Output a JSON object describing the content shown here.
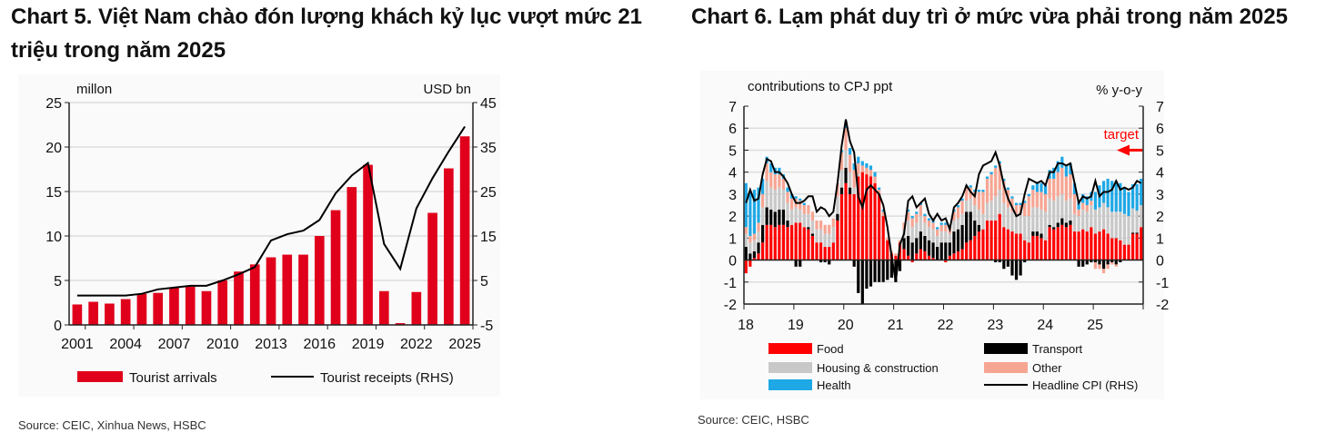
{
  "charts": [
    {
      "title": "Chart 5. Việt Nam chào đón lượng khách kỷ lục vượt mức 21 triệu trong năm 2025",
      "source": "Source: CEIC, Xinhua News, HSBC"
    },
    {
      "title": "Chart 6. Lạm phát duy trì ở mức vừa phải trong năm 2025",
      "source": "Source: CEIC, HSBC"
    }
  ],
  "chart_data": [
    {
      "type": "bar+line",
      "ylabel": "millon",
      "y2label": "USD bn",
      "ylim": [
        0,
        25
      ],
      "y2lim": [
        -5,
        45
      ],
      "yticks": [
        0,
        5,
        10,
        15,
        20,
        25
      ],
      "y2ticks": [
        -5,
        5,
        15,
        25,
        35,
        45
      ],
      "xticks": [
        "2001",
        "2004",
        "2007",
        "2010",
        "2013",
        "2016",
        "2019",
        "2022",
        "2025"
      ],
      "categories": [
        2001,
        2002,
        2003,
        2004,
        2005,
        2006,
        2007,
        2008,
        2009,
        2010,
        2011,
        2012,
        2013,
        2014,
        2015,
        2016,
        2017,
        2018,
        2019,
        2020,
        2021,
        2022,
        2023,
        2024,
        2025
      ],
      "series": [
        {
          "name": "Tourist arrivals",
          "type": "bar",
          "axis": "left",
          "color": "#e0001b",
          "values": [
            2.3,
            2.6,
            2.4,
            2.9,
            3.5,
            3.6,
            4.2,
            4.3,
            3.8,
            5.0,
            6.0,
            6.8,
            7.6,
            7.9,
            7.9,
            10.0,
            12.9,
            15.5,
            18.0,
            3.8,
            0.2,
            3.7,
            12.6,
            17.6,
            21.2
          ]
        },
        {
          "name": "Tourist receipts (RHS)",
          "type": "line",
          "axis": "right",
          "color": "#000000",
          "values": [
            1.6,
            1.6,
            1.6,
            1.6,
            2.0,
            3.0,
            3.4,
            3.8,
            3.8,
            5.0,
            6.4,
            8.0,
            14.0,
            15.4,
            16.2,
            18.6,
            24.6,
            28.6,
            31.4,
            13.2,
            7.6,
            21.2,
            28.0,
            34.0,
            39.6
          ]
        }
      ],
      "legend": "bottom",
      "grid": true
    },
    {
      "type": "stacked-bar+line",
      "ylabel": "contributions to CPJ ppt",
      "y2label": "% y-o-y",
      "ylim": [
        -2,
        7
      ],
      "y2lim": [
        -2,
        7
      ],
      "yticks": [
        -2,
        -1,
        0,
        1,
        2,
        3,
        4,
        5,
        6,
        7
      ],
      "xticks": [
        "18",
        "19",
        "20",
        "21",
        "22",
        "23",
        "24",
        "25"
      ],
      "annotation": {
        "text": "target",
        "value": 5,
        "color": "#ff0000"
      },
      "series": [
        {
          "name": "Food",
          "type": "bar",
          "color": "#ff0000",
          "values": [
            -0.6,
            -0.3,
            0.1,
            0.3,
            0.8,
            1.6,
            1.6,
            1.5,
            1.6,
            1.6,
            1.5,
            1.6,
            1.7,
            1.7,
            1.5,
            1.4,
            1.1,
            0.8,
            0.8,
            0.6,
            0.6,
            0.8,
            1.8,
            3.0,
            3.5,
            3.0,
            3.0,
            3.8,
            4.0,
            3.9,
            3.8,
            3.5,
            3.0,
            2.0,
            0.9,
            0.3,
            0.2,
            0.8,
            0.5,
            0.2,
            -0.1,
            0.3,
            0.5,
            0.4,
            0.2,
            0.1,
            0,
            0,
            -0.1,
            0.2,
            0.3,
            0.4,
            0.5,
            0.8,
            0.9,
            1.1,
            1.3,
            1.4,
            1.8,
            1.8,
            1.8,
            2.1,
            1.5,
            1.4,
            1.3,
            1.2,
            1.2,
            0.9,
            0.8,
            1.1,
            1.1,
            1.0,
            0.9,
            1.5,
            1.4,
            1.5,
            1.6,
            1.5,
            1.6,
            1.3,
            1.3,
            1.4,
            1.3,
            1.5,
            1.2,
            1.3,
            1.4,
            1.2,
            1.0,
            1.0,
            0.9,
            0.7,
            0.7,
            1.2,
            1.2,
            1.5
          ]
        },
        {
          "name": "Transport",
          "type": "bar",
          "color": "#000000",
          "values": [
            0.6,
            0.3,
            0.3,
            0.5,
            0.8,
            0.8,
            0.7,
            0.7,
            0.7,
            0.7,
            0.3,
            0,
            -0.3,
            -0.3,
            0,
            0.1,
            0.1,
            0,
            -0.1,
            -0.1,
            -0.2,
            0,
            0.3,
            0.3,
            0.7,
            0.3,
            -0.3,
            -1.5,
            -2.0,
            -1.3,
            -1.2,
            -1.0,
            -1.0,
            -1.0,
            -0.9,
            -0.8,
            -1.0,
            -0.5,
            0.5,
            0.9,
            0.8,
            0.7,
            0.8,
            0.7,
            0.7,
            0.7,
            0.6,
            0.8,
            0.8,
            0.6,
            1.0,
            1.0,
            1.1,
            1.4,
            1.3,
            0.7,
            0.3,
            0,
            0,
            0,
            -0.1,
            -0.1,
            -0.4,
            -0.3,
            -0.7,
            -0.9,
            -0.7,
            -0.1,
            0,
            0.2,
            0.2,
            0.2,
            0,
            0.1,
            0.1,
            0.2,
            0.3,
            0.2,
            0.2,
            0,
            -0.3,
            -0.3,
            -0.2,
            -0.1,
            -0.1,
            -0.2,
            -0.4,
            -0.2,
            -0.1,
            -0.2,
            -0.1,
            0,
            0,
            0.05,
            0.05,
            0
          ]
        },
        {
          "name": "Housing & construction",
          "type": "bar",
          "color": "#c8c8c8",
          "values": [
            0.6,
            0.5,
            0.5,
            0.5,
            0.8,
            1.2,
            1.0,
            1.0,
            1.0,
            0.9,
            0.8,
            0.7,
            0.7,
            0.6,
            0.6,
            0.6,
            0.6,
            0.6,
            0.6,
            0.6,
            0.6,
            0.7,
            0.8,
            0.8,
            0.8,
            0.7,
            0.3,
            0.1,
            0,
            0,
            0,
            0,
            0,
            0,
            0,
            0,
            0,
            0,
            0.4,
            0.7,
            0.7,
            0.7,
            0.7,
            0.6,
            0.6,
            0.6,
            0.5,
            0.5,
            0.5,
            0.4,
            0.5,
            0.5,
            0.5,
            0.5,
            0.6,
            0.7,
            0.7,
            0.7,
            0.8,
            0.9,
            1.1,
            1.1,
            1.1,
            1.0,
            0.9,
            0.9,
            0.9,
            1.1,
            1.2,
            1.1,
            1.1,
            1.1,
            1.3,
            1.2,
            1.2,
            1.2,
            1.1,
            1.0,
            1.0,
            0.8,
            0.7,
            0.9,
            0.9,
            1.0,
            1.1,
            1.1,
            1.2,
            1.2,
            1.2,
            1.2,
            1.3,
            1.4,
            1.3,
            1.1,
            1.0,
            1.0
          ]
        },
        {
          "name": "Other",
          "type": "bar",
          "color": "#f7a593",
          "values": [
            0.3,
            0.3,
            0.3,
            0.4,
            0.6,
            0.8,
            0.7,
            0.7,
            0.6,
            0.5,
            0.5,
            0.5,
            0.4,
            0.4,
            0.4,
            0.4,
            0.4,
            0.4,
            0.4,
            0.4,
            0.4,
            0.4,
            0.6,
            0.8,
            1.0,
            0.8,
            0.8,
            0.5,
            0.3,
            0.3,
            0.3,
            0.3,
            0.2,
            0.2,
            0.1,
            0.1,
            0.1,
            0.1,
            0.3,
            0.4,
            0.4,
            0.4,
            0.5,
            0.3,
            0.3,
            0.3,
            0.3,
            0.3,
            0.3,
            0.3,
            0.4,
            0.5,
            0.6,
            0.6,
            0.5,
            0.6,
            0.8,
            1.0,
            1.1,
            1.2,
            1.3,
            1.2,
            1.0,
            0.8,
            0.6,
            0.4,
            0.4,
            0.6,
            0.9,
            0.8,
            0.7,
            0.8,
            0.8,
            0.9,
            1.0,
            1.1,
            1.2,
            1.1,
            1.1,
            0.9,
            0.3,
            0.3,
            0.3,
            0.2,
            -0.3,
            -0.2,
            -0.2,
            -0.2,
            -0.1,
            -0.1,
            0,
            0,
            0,
            0,
            0,
            0
          ]
        },
        {
          "name": "Health",
          "type": "bar",
          "color": "#1ea8e6",
          "values": [
            2.0,
            2.0,
            2.0,
            1.6,
            0.7,
            0.3,
            0.4,
            0.3,
            0.3,
            0.2,
            0.2,
            0.2,
            0.1,
            0.1,
            0.1,
            0,
            0,
            0,
            0,
            0,
            0,
            0,
            0,
            0.1,
            0.3,
            0.3,
            0.3,
            0.3,
            0.2,
            0.2,
            0.2,
            0.2,
            0.1,
            0.1,
            0,
            0,
            0,
            0,
            0,
            0.1,
            0.1,
            0.1,
            0.1,
            0.1,
            0.1,
            0.1,
            0.1,
            0.1,
            0.1,
            0.1,
            0.1,
            0.1,
            0.1,
            0.1,
            0.1,
            0.1,
            0.1,
            0.1,
            0.1,
            0.1,
            0.1,
            0.1,
            0.1,
            0.1,
            0.1,
            0.1,
            0.1,
            0.1,
            0.1,
            0.2,
            0.4,
            0.4,
            0.4,
            0.4,
            0.5,
            0.5,
            0.5,
            0.5,
            0.5,
            0.5,
            0.4,
            0.4,
            0.4,
            0.4,
            0.8,
            1.0,
            1.0,
            1.3,
            1.4,
            1.4,
            1.3,
            1.2,
            1.1,
            1.1,
            1.2,
            1.2
          ]
        },
        {
          "name": "Headline CPI (RHS)",
          "type": "line",
          "color": "#000000",
          "values": [
            2.6,
            3.2,
            2.7,
            2.8,
            3.9,
            4.6,
            4.5,
            4.0,
            4.0,
            3.8,
            3.5,
            3.0,
            2.6,
            2.6,
            2.7,
            2.9,
            2.9,
            2.2,
            2.4,
            2.3,
            2.0,
            2.2,
            3.5,
            5.2,
            6.4,
            5.4,
            4.9,
            2.9,
            2.4,
            3.2,
            3.4,
            3.2,
            3.0,
            2.5,
            1.5,
            0.2,
            -1.0,
            0.7,
            1.2,
            2.7,
            2.9,
            2.4,
            2.6,
            2.8,
            2.1,
            1.8,
            2.1,
            1.8,
            1.9,
            1.4,
            2.4,
            2.6,
            2.9,
            3.4,
            3.1,
            2.9,
            3.9,
            4.3,
            4.4,
            4.5,
            4.9,
            4.3,
            3.4,
            2.8,
            2.4,
            2.0,
            2.1,
            3.0,
            3.7,
            3.6,
            3.5,
            3.6,
            3.4,
            4.0,
            4.0,
            4.4,
            4.4,
            4.3,
            4.4,
            3.5,
            2.6,
            2.9,
            2.8,
            2.9,
            3.6,
            2.9,
            3.1,
            3.1,
            3.2,
            3.6,
            3.2,
            3.3,
            3.2,
            3.3,
            3.6,
            3.5
          ]
        }
      ],
      "legend": "bottom",
      "grid": true
    }
  ]
}
